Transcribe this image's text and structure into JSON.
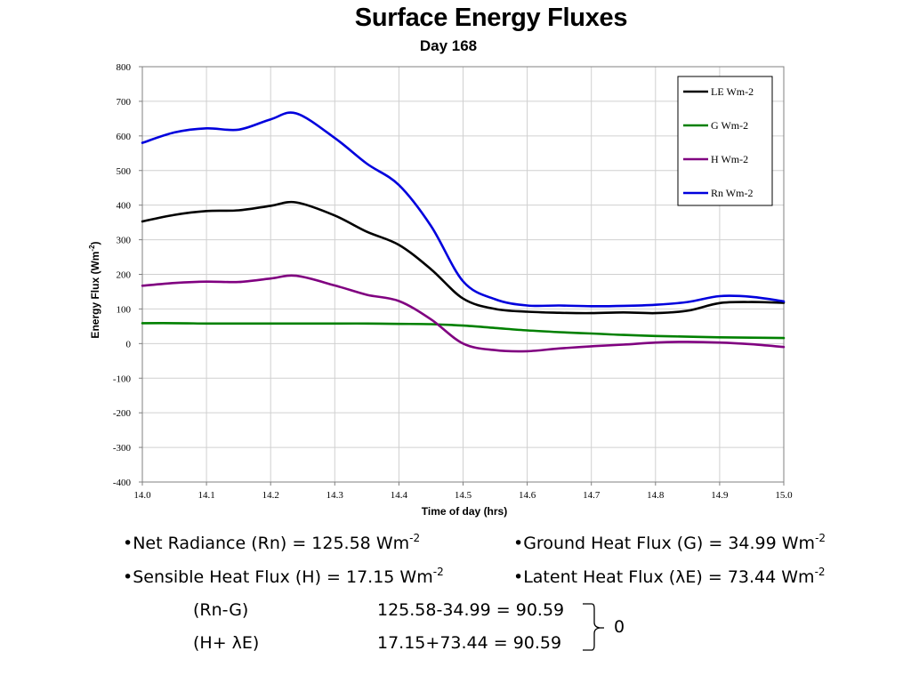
{
  "header": {
    "title": "Surface Energy Fluxes",
    "subtitle": "Day 168"
  },
  "chart_data": {
    "type": "line",
    "title": "Surface Energy Fluxes",
    "subtitle": "Day 168",
    "xlabel": "Time of day (hrs)",
    "ylabel": "Energy Flux (Wm",
    "ylabel_sup": "-2",
    "ylabel_end": ")",
    "xlim": [
      14.0,
      15.0
    ],
    "ylim": [
      -400,
      800
    ],
    "xticks": [
      "14.0",
      "14.1",
      "14.2",
      "14.3",
      "14.4",
      "14.5",
      "14.6",
      "14.7",
      "14.8",
      "14.9",
      "15.0"
    ],
    "yticks": [
      "800",
      "700",
      "600",
      "500",
      "400",
      "300",
      "200",
      "100",
      "0",
      "-100",
      "-200",
      "-300",
      "-400"
    ],
    "grid": true,
    "legend_position": "top-right",
    "x": [
      14.0,
      14.05,
      14.1,
      14.15,
      14.2,
      14.24,
      14.3,
      14.35,
      14.4,
      14.45,
      14.5,
      14.55,
      14.6,
      14.65,
      14.7,
      14.75,
      14.8,
      14.85,
      14.9,
      14.95,
      15.0
    ],
    "series": [
      {
        "name": "LE Wm-2",
        "color": "#000000",
        "values": [
          353,
          372,
          383,
          385,
          398,
          408,
          370,
          323,
          285,
          215,
          130,
          100,
          92,
          89,
          88,
          90,
          88,
          95,
          117,
          120,
          118
        ]
      },
      {
        "name": "G Wm-2",
        "color": "#008000",
        "values": [
          59,
          59,
          58,
          58,
          58,
          58,
          58,
          58,
          57,
          56,
          52,
          45,
          38,
          33,
          29,
          25,
          22,
          20,
          18,
          17,
          16
        ]
      },
      {
        "name": "H Wm-2",
        "color": "#800080",
        "values": [
          167,
          175,
          179,
          178,
          188,
          196,
          168,
          141,
          123,
          70,
          0,
          -19,
          -22,
          -14,
          -8,
          -3,
          3,
          5,
          3,
          -2,
          -10
        ]
      },
      {
        "name": "Rn Wm-2",
        "color": "#0000dd",
        "values": [
          580,
          610,
          622,
          618,
          648,
          665,
          594,
          520,
          458,
          340,
          180,
          128,
          110,
          110,
          108,
          109,
          112,
          120,
          137,
          135,
          122
        ]
      }
    ]
  },
  "equations": {
    "rn": {
      "text": "•Net Radiance (Rn) = 125.58 Wm",
      "sup": "-2"
    },
    "g": {
      "text": "•Ground Heat Flux (G) = 34.99 Wm",
      "sup": "-2"
    },
    "h": {
      "text": "•Sensible Heat Flux (H) = 17.15 Wm",
      "sup": "-2"
    },
    "le": {
      "text": "•Latent Heat Flux  (λE) = 73.44 Wm",
      "sup": "-2"
    },
    "rn_minus_g_label": "(Rn-G)",
    "rn_minus_g_value": "125.58-34.99 = 90.59",
    "h_plus_le_label": "(H+ λE)",
    "h_plus_le_value": "17.15+73.44 = 90.59",
    "difference": "0"
  }
}
